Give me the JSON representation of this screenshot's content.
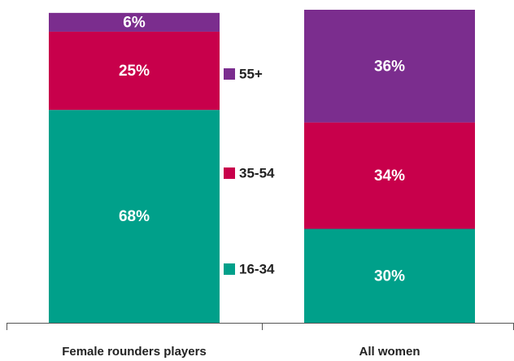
{
  "chart_data": {
    "type": "stacked_bar",
    "categories": [
      "Female rounders players",
      "All women"
    ],
    "series": [
      {
        "name": "16-34",
        "color": "#00a08a",
        "values": [
          68,
          30
        ],
        "value_labels": [
          "68%",
          "30%"
        ]
      },
      {
        "name": "35-54",
        "color": "#c8004b",
        "values": [
          25,
          34
        ],
        "value_labels": [
          "25%",
          "34%"
        ]
      },
      {
        "name": "55+",
        "color": "#7b2d8e",
        "values": [
          6,
          36
        ],
        "value_labels": [
          "6%",
          "36%"
        ]
      }
    ],
    "ylim": [
      0,
      100
    ],
    "legend": "center"
  }
}
